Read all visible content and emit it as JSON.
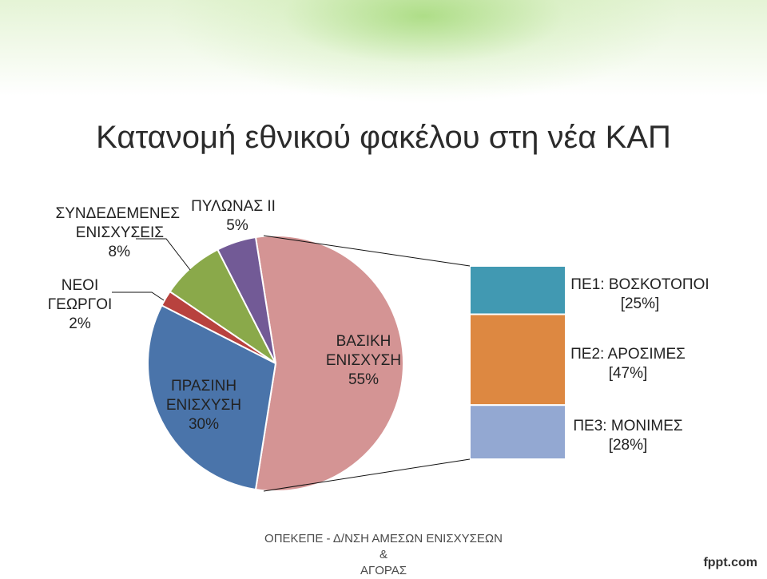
{
  "slide": {
    "title": "Κατανομή εθνικού φακέλου στη νέα ΚΑΠ",
    "footer_line1": "ΟΠΕΚΕΠΕ - Δ/ΝΣΗ ΑΜΕΣΩΝ ΕΝΙΣΧΥΣΕΩΝ &",
    "footer_line2": "ΑΓΟΡΑΣ",
    "brand": "fppt.com"
  },
  "chart_data": [
    {
      "type": "pie",
      "categories": [
        "ΒΑΣΙΚΗ ΕΝΙΣΧΥΣΗ",
        "ΠΡΑΣΙΝΗ ΕΝΙΣΧΥΣΗ",
        "ΝΕΟΙ ΓΕΩΡΓΟΙ",
        "ΣΥΝΔΕΔΕΜΕΝΕΣ ΕΝΙΣΧΥΣΕΙΣ",
        "ΠΥΛΩΝΑΣ ΙΙ"
      ],
      "values": [
        55,
        30,
        2,
        8,
        5
      ],
      "colors": [
        "#d49494",
        "#4a74aa",
        "#b8423e",
        "#8aa94a",
        "#725a96"
      ],
      "labels": {
        "basic": [
          "ΒΑΣΙΚΗ",
          "ΕΝΙΣΧΥΣΗ",
          "55%"
        ],
        "green": [
          "ΠΡΑΣΙΝΗ",
          "ΕΝΙΣΧΥΣΗ",
          "30%"
        ],
        "young": [
          "ΝΕΟΙ",
          "ΓΕΩΡΓΟΙ",
          "2%"
        ],
        "coupled": [
          "ΣΥΝΔΕΔΕΜΕΝΕΣ",
          "ΕΝΙΣΧΥΣΕΙΣ",
          "8%"
        ],
        "pillar": [
          "ΠΥΛΩΝΑΣ ΙΙ",
          "5%"
        ]
      }
    },
    {
      "type": "bar",
      "stacked": true,
      "parent": "ΒΑΣΙΚΗ ΕΝΙΣΧΥΣΗ",
      "categories": [
        "ΠΕ1: ΒΟΣΚΟΤΟΠΟΙ",
        "ΠΕ2: ΑΡΟΣΙΜΕΣ",
        "ΠΕ3: ΜΟΝΙΜΕΣ"
      ],
      "values": [
        25,
        47,
        28
      ],
      "colors": [
        "#4199b2",
        "#dd8841",
        "#93a8d2"
      ],
      "labels": {
        "pe1": [
          "ΠΕ1: ΒΟΣΚΟΤΟΠΟΙ",
          "[25%]"
        ],
        "pe2": [
          "ΠΕ2: ΑΡΟΣΙΜΕΣ",
          "[47%]"
        ],
        "pe3": [
          "ΠΕ3: ΜΟΝΙΜΕΣ",
          "[28%]"
        ]
      }
    }
  ]
}
